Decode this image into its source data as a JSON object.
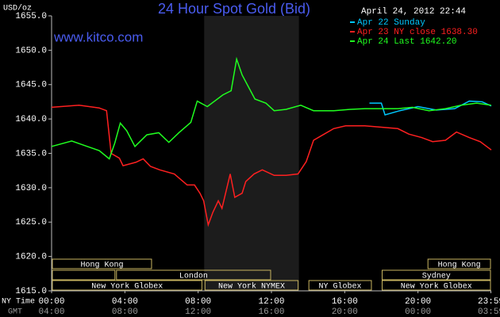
{
  "chart_data": {
    "type": "line",
    "title": "24 Hour Spot Gold (Bid)",
    "source": "www.kitco.com",
    "timestamp": "April 24, 2012 22:44",
    "y_label": "USD/oz",
    "x_label": "NY Time",
    "x2_label": "GMT",
    "xlim": [
      0,
      24
    ],
    "xticks": [
      {
        "value": 0,
        "label": "00:00"
      },
      {
        "value": 4,
        "label": "04:00"
      },
      {
        "value": 8,
        "label": "08:00"
      },
      {
        "value": 12,
        "label": "12:00"
      },
      {
        "value": 16,
        "label": "16:00"
      },
      {
        "value": 20,
        "label": "20:00"
      },
      {
        "value": 23.98,
        "label": "23:59"
      }
    ],
    "x2ticks": [
      {
        "value": 0,
        "label": "04:00"
      },
      {
        "value": 4,
        "label": "08:00"
      },
      {
        "value": 8,
        "label": "12:00"
      },
      {
        "value": 12,
        "label": "16:00"
      },
      {
        "value": 16,
        "label": "20:00"
      },
      {
        "value": 20,
        "label": "00:00"
      },
      {
        "value": 23.98,
        "label": "03:59"
      }
    ],
    "ylim": [
      1615,
      1655
    ],
    "yticks": [
      {
        "value": 1615,
        "label": "1615.0"
      },
      {
        "value": 1620,
        "label": "1620.0"
      },
      {
        "value": 1625,
        "label": "1625.0"
      },
      {
        "value": 1630,
        "label": "1630.0"
      },
      {
        "value": 1635,
        "label": "1635.0"
      },
      {
        "value": 1640,
        "label": "1640.0"
      },
      {
        "value": 1645,
        "label": "1645.0"
      },
      {
        "value": 1650,
        "label": "1650.0"
      },
      {
        "value": 1655,
        "label": "1655.0"
      }
    ],
    "grid": false,
    "series": [
      {
        "name": "Apr 22 Sunday",
        "color": "#00c8ff",
        "x": [
          17.35,
          18.0,
          18.2,
          19.0,
          20.0,
          21.0,
          22.0,
          22.8,
          23.5,
          24.0
        ],
        "values": [
          1642.3,
          1642.3,
          1640.6,
          1641.2,
          1641.8,
          1641.3,
          1641.5,
          1642.6,
          1642.5,
          1641.9
        ]
      },
      {
        "name": "Apr 23 NY close 1638.30",
        "color": "#ff2020",
        "x": [
          0,
          1.5,
          2.6,
          3.0,
          3.25,
          3.7,
          3.9,
          4.6,
          5.0,
          5.4,
          5.9,
          6.7,
          7.4,
          7.8,
          8.1,
          8.3,
          8.55,
          8.8,
          9.1,
          9.3,
          9.75,
          10.0,
          10.4,
          10.6,
          11.05,
          11.5,
          12.15,
          12.8,
          13.45,
          13.9,
          14.3,
          14.75,
          15.4,
          16.05,
          17.1,
          18.0,
          18.9,
          19.5,
          20.2,
          20.8,
          21.5,
          22.1,
          22.8,
          23.4,
          24.0
        ],
        "values": [
          1641.7,
          1642.0,
          1641.6,
          1641.2,
          1635.0,
          1634.3,
          1633.2,
          1633.7,
          1634.2,
          1633.1,
          1632.6,
          1632.0,
          1630.4,
          1630.4,
          1629.2,
          1628.1,
          1624.6,
          1626.4,
          1628.1,
          1627.0,
          1632.0,
          1628.6,
          1629.2,
          1630.9,
          1632.0,
          1632.6,
          1631.8,
          1631.8,
          1632.0,
          1633.8,
          1636.9,
          1637.6,
          1638.6,
          1639.0,
          1639.0,
          1638.8,
          1638.6,
          1637.8,
          1637.3,
          1636.7,
          1636.9,
          1638.1,
          1637.3,
          1636.7,
          1635.5
        ]
      },
      {
        "name": "Apr 24 Last 1642.20",
        "color": "#20ff20",
        "x": [
          0,
          1.1,
          1.95,
          2.6,
          3.15,
          3.45,
          3.75,
          4.1,
          4.55,
          5.2,
          5.85,
          6.4,
          6.95,
          7.6,
          7.95,
          8.5,
          8.9,
          9.35,
          9.8,
          10.1,
          10.4,
          11.1,
          11.7,
          12.15,
          12.8,
          13.6,
          14.3,
          15.4,
          16.3,
          17.1,
          18.0,
          18.9,
          19.7,
          20.6,
          21.5,
          22.35,
          23.2,
          23.99
        ],
        "values": [
          1636.0,
          1636.8,
          1636.0,
          1635.4,
          1634.2,
          1636.5,
          1639.4,
          1638.3,
          1636.0,
          1637.7,
          1638.0,
          1636.6,
          1638.0,
          1639.5,
          1642.6,
          1641.8,
          1642.6,
          1643.5,
          1644.1,
          1648.7,
          1646.4,
          1642.9,
          1642.3,
          1641.2,
          1641.4,
          1642.0,
          1641.2,
          1641.2,
          1641.4,
          1641.5,
          1641.5,
          1641.5,
          1641.7,
          1641.2,
          1641.5,
          1642.0,
          1642.3,
          1642.0
        ]
      }
    ],
    "sessions": [
      [
        {
          "label": "Hong Kong",
          "start": 0,
          "end": 5.5
        },
        {
          "label": "Hong Kong",
          "start": 20.5,
          "end": 24
        }
      ],
      [
        {
          "label": null,
          "start": 0,
          "end": 3.5
        },
        {
          "label": "London",
          "start": 3.5,
          "end": 12
        },
        {
          "label": "Sydney",
          "start": 18,
          "end": 24
        }
      ],
      [
        {
          "label": "New York Globex",
          "start": 0,
          "end": 8.25
        },
        {
          "label": "New York NYMEX",
          "start": 8.33,
          "end": 13.5,
          "shaded": true
        },
        {
          "label": "NY Globex",
          "start": 14,
          "end": 17.5
        },
        {
          "label": "New York Globex",
          "start": 18,
          "end": 24
        }
      ]
    ]
  }
}
